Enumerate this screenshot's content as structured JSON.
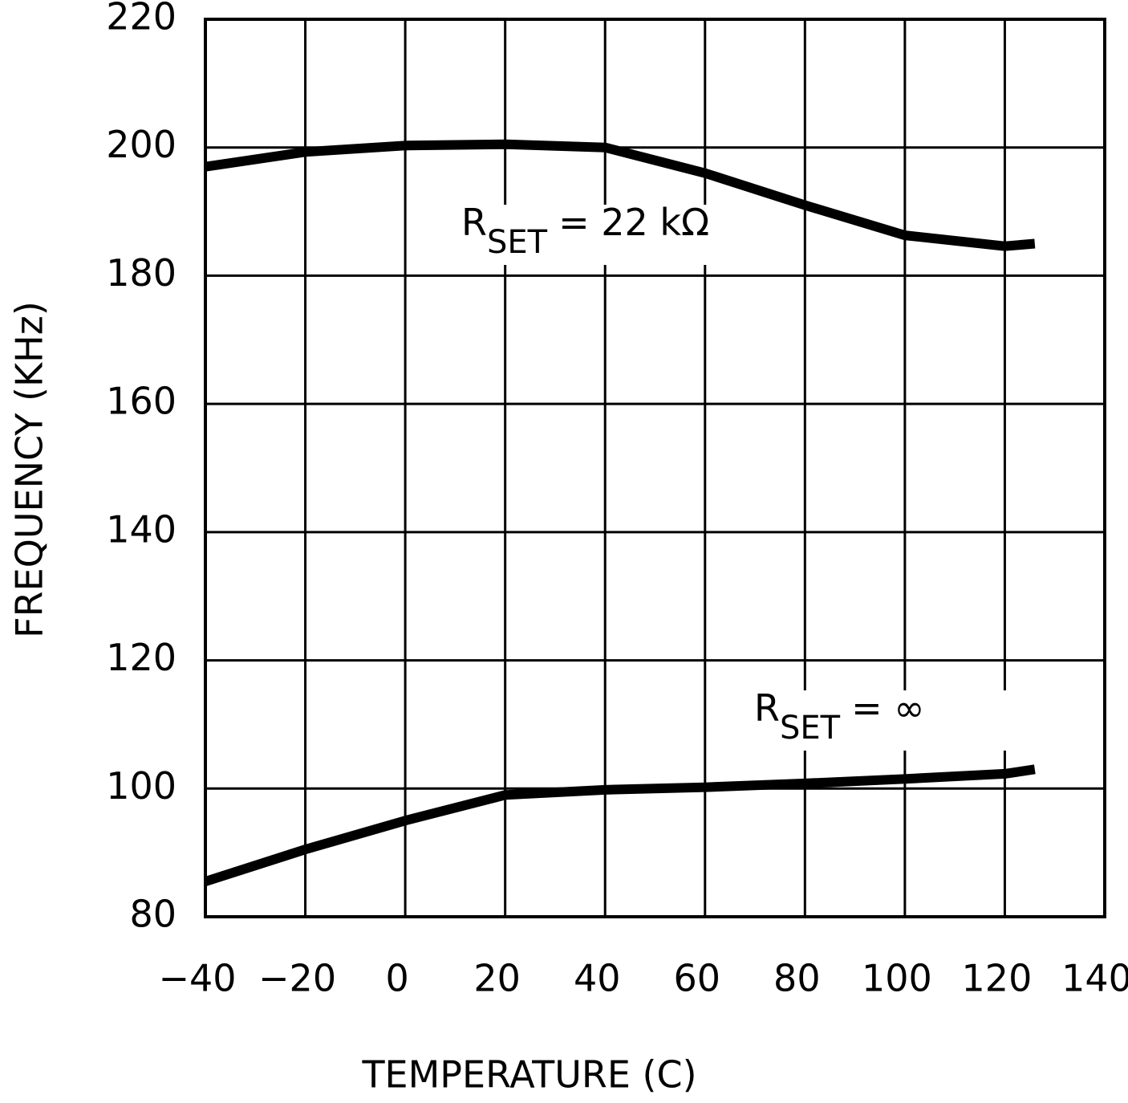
{
  "chart_data": {
    "type": "line",
    "xlabel": "TEMPERATURE (C)",
    "ylabel": "FREQUENCY (KHz)",
    "x": [
      -40,
      -20,
      0,
      20,
      40,
      60,
      80,
      100,
      120,
      126
    ],
    "series": [
      {
        "label": {
          "main": "R",
          "sub": "SET",
          "rest": "= 22 kΩ"
        },
        "color": "#000000",
        "values": [
          197,
          199.3,
          200.3,
          200.5,
          200,
          196,
          191,
          186.3,
          184.6,
          185
        ]
      },
      {
        "label": {
          "main": "R",
          "sub": "SET",
          "rest": "= ∞"
        },
        "color": "#000000",
        "values": [
          85.5,
          90.5,
          95,
          99,
          99.8,
          100.2,
          100.8,
          101.5,
          102.3,
          103
        ]
      }
    ],
    "xlim": [
      -40,
      140
    ],
    "xticks": [
      {
        "value": -40,
        "label": "−40"
      },
      {
        "value": -20,
        "label": "−20"
      },
      0,
      20,
      40,
      60,
      80,
      100,
      120,
      140
    ],
    "ylim": [
      80,
      220
    ],
    "yticks": [
      80,
      100,
      120,
      140,
      160,
      180,
      200,
      220
    ],
    "grid": true
  }
}
